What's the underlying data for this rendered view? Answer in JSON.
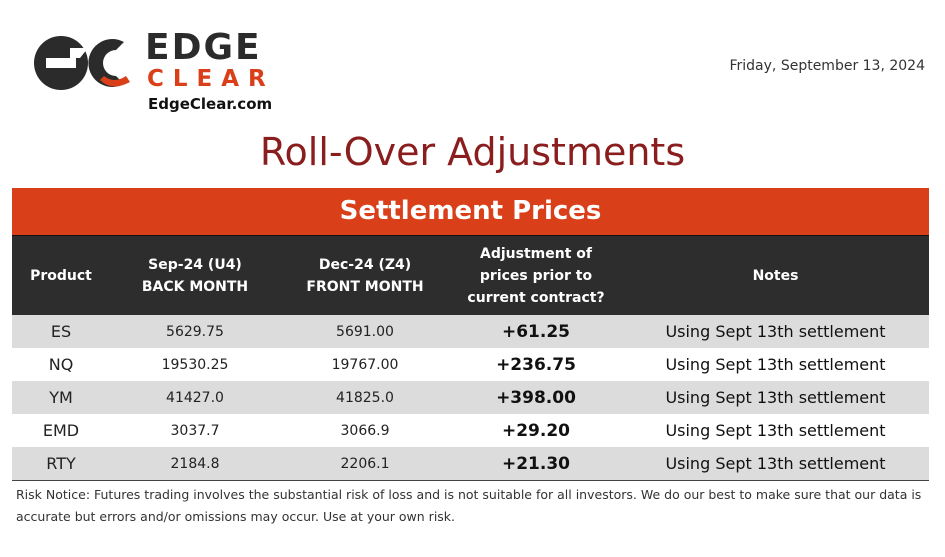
{
  "brand": {
    "logo_word1": "EDGE",
    "logo_word2": "CLEAR",
    "url": "EdgeClear.com",
    "accent_color": "#d9401a",
    "dark_color": "#2b2b2b"
  },
  "date": "Friday, September 13, 2024",
  "title": "Roll-Over Adjustments",
  "banner": "Settlement Prices",
  "columns": {
    "product": "Product",
    "back_line1": "Sep-24 (U4)",
    "back_line2": "BACK MONTH",
    "front_line1": "Dec-24 (Z4)",
    "front_line2": "FRONT MONTH",
    "adj_line1": "Adjustment of",
    "adj_line2": "prices prior to",
    "adj_line3": "current contract?",
    "notes": "Notes"
  },
  "rows": [
    {
      "product": "ES",
      "back": "5629.75",
      "front": "5691.00",
      "adjustment": "+61.25",
      "note": "Using Sept 13th settlement"
    },
    {
      "product": "NQ",
      "back": "19530.25",
      "front": "19767.00",
      "adjustment": "+236.75",
      "note": "Using Sept 13th settlement"
    },
    {
      "product": "YM",
      "back": "41427.0",
      "front": "41825.0",
      "adjustment": "+398.00",
      "note": "Using Sept 13th settlement"
    },
    {
      "product": "EMD",
      "back": "3037.7",
      "front": "3066.9",
      "adjustment": "+29.20",
      "note": "Using Sept 13th settlement"
    },
    {
      "product": "RTY",
      "back": "2184.8",
      "front": "2206.1",
      "adjustment": "+21.30",
      "note": "Using Sept 13th settlement"
    }
  ],
  "risk_notice": "Risk Notice: Futures trading involves the substantial risk of loss and is not suitable for all investors. We do our best to make sure that our data is accurate but errors and/or omissions may occur. Use at your own risk."
}
